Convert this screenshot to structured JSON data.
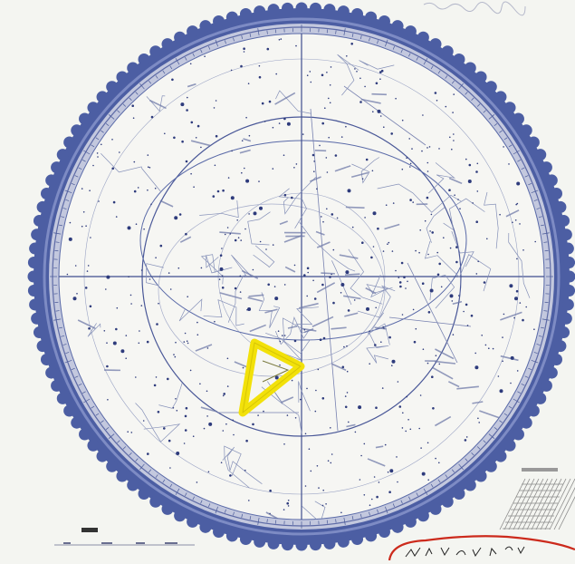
{
  "map": {
    "type": "planisphere star chart",
    "colors": {
      "paper": "#f4f5f1",
      "rim": "#4c5ea3",
      "rim_light": "#8b98cc",
      "rim_dark": "#3a4a8e",
      "grid": "#5a6aa8",
      "stars": "#2e3b7c",
      "constellation_lines": "#8590b8",
      "highlight": "#f2e10a",
      "annotation": "#cc2a1c"
    },
    "icons": {
      "highlight": "yellow-triangle-asterism",
      "scale": "hatched-scale-graphic"
    },
    "highlight_shape": "triangle asterism outlined in yellow marker"
  }
}
